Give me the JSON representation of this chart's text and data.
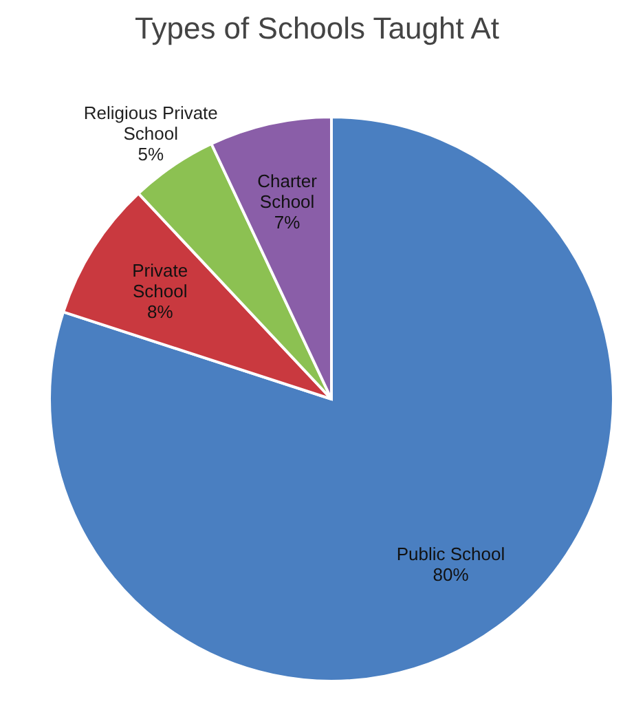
{
  "chart_data": {
    "type": "pie",
    "title": "Types of Schools Taught At",
    "categories": [
      "Public School",
      "Private School",
      "Religious Private School",
      "Charter School"
    ],
    "values": [
      80,
      8,
      5,
      7
    ],
    "colors": [
      "#4a7fc1",
      "#c9393f",
      "#8cc152",
      "#8a5ea8"
    ],
    "value_labels": [
      "80%",
      "8%",
      "5%",
      "7%"
    ],
    "legend": false
  }
}
